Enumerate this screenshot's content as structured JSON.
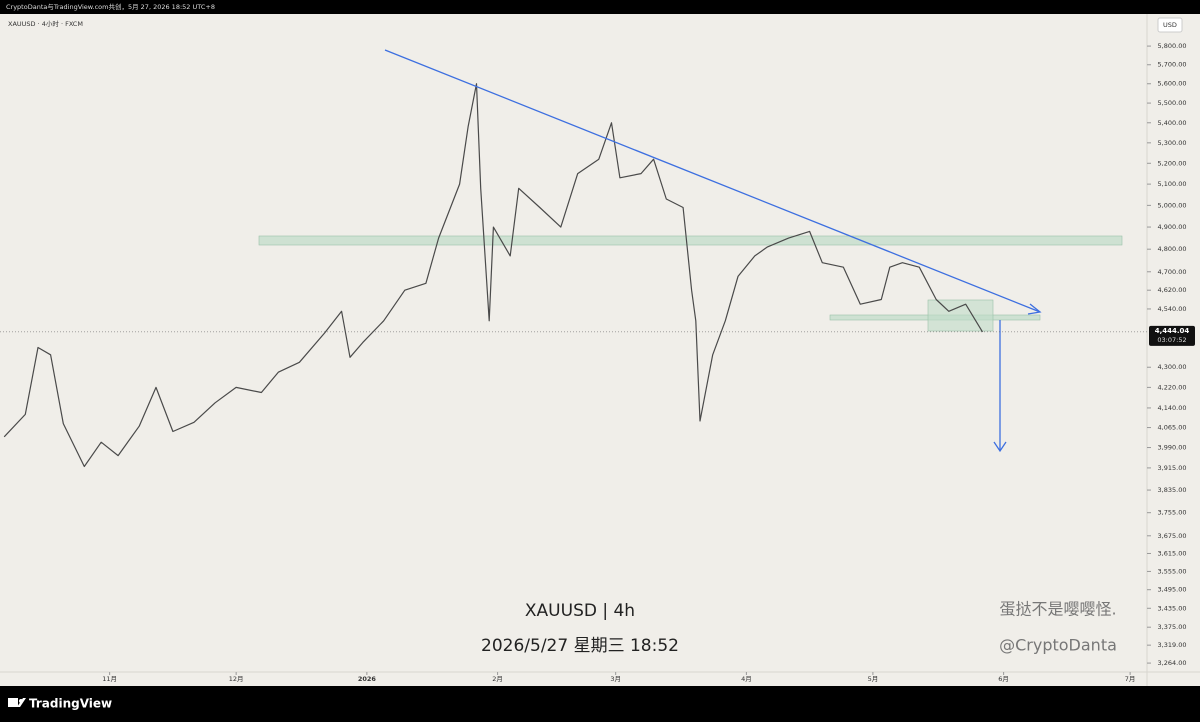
{
  "header": {
    "caption": "CryptoDanta与TradingView.com共创，5月 27, 2026 18:52 UTC+8",
    "symbol": "XAUUSD · 4小时 · FXCM",
    "currency": "USD"
  },
  "chart_data": {
    "type": "line",
    "color": "#4a4a4a",
    "log_scale": true,
    "x": [
      "2025-10-07",
      "2025-10-12",
      "2025-10-15",
      "2025-10-18",
      "2025-10-21",
      "2025-10-26",
      "2025-10-30",
      "2025-11-03",
      "2025-11-08",
      "2025-11-12",
      "2025-11-16",
      "2025-11-21",
      "2025-11-26",
      "2025-12-01",
      "2025-12-07",
      "2025-12-11",
      "2025-12-16",
      "2025-12-22",
      "2025-12-26",
      "2025-12-28",
      "2025-12-31",
      "2026-01-05",
      "2026-01-10",
      "2026-01-15",
      "2026-01-18",
      "2026-01-23",
      "2026-01-25",
      "2026-01-27",
      "2026-01-28",
      "2026-01-30",
      "2026-01-31",
      "2026-02-04",
      "2026-02-06",
      "2026-02-11",
      "2026-02-16",
      "2026-02-20",
      "2026-02-25",
      "2026-02-28",
      "2026-03-02",
      "2026-03-07",
      "2026-03-10",
      "2026-03-13",
      "2026-03-17",
      "2026-03-19",
      "2026-03-20",
      "2026-03-21",
      "2026-03-24",
      "2026-03-27",
      "2026-03-30",
      "2026-04-03",
      "2026-04-06",
      "2026-04-11",
      "2026-04-16",
      "2026-04-19",
      "2026-04-24",
      "2026-04-28",
      "2026-05-03",
      "2026-05-05",
      "2026-05-08",
      "2026-05-12",
      "2026-05-16",
      "2026-05-19",
      "2026-05-23",
      "2026-05-27"
    ],
    "values": [
      4030,
      4115,
      4380,
      4350,
      4080,
      3920,
      4010,
      3960,
      4070,
      4220,
      4050,
      4085,
      4160,
      4220,
      4200,
      4280,
      4320,
      4440,
      4530,
      4340,
      4400,
      4490,
      4620,
      4650,
      4850,
      5100,
      5380,
      5600,
      5080,
      4490,
      4900,
      4770,
      5080,
      4990,
      4900,
      5150,
      5220,
      5400,
      5130,
      5150,
      5220,
      5030,
      4990,
      4620,
      4490,
      4090,
      4350,
      4490,
      4680,
      4770,
      4810,
      4850,
      4880,
      4740,
      4720,
      4560,
      4580,
      4720,
      4740,
      4720,
      4580,
      4530,
      4560,
      4444.04
    ],
    "xlim": [
      "2025-10-06",
      "2026-07-05"
    ],
    "xticks": [
      {
        "value": "2025-11-01",
        "label": "11月"
      },
      {
        "value": "2025-12-01",
        "label": "12月"
      },
      {
        "value": "2026-01-01",
        "label": "2026"
      },
      {
        "value": "2026-02-01",
        "label": "2月"
      },
      {
        "value": "2026-03-01",
        "label": "3月"
      },
      {
        "value": "2026-04-01",
        "label": "4月"
      },
      {
        "value": "2026-05-01",
        "label": "5月"
      },
      {
        "value": "2026-06-01",
        "label": "6月"
      },
      {
        "value": "2026-07-01",
        "label": "7月"
      }
    ],
    "ylim": [
      3237,
      5976
    ],
    "yticks": [
      {
        "value": 5800,
        "label": "5,800.00"
      },
      {
        "value": 5700,
        "label": "5,700.00"
      },
      {
        "value": 5600,
        "label": "5,600.00"
      },
      {
        "value": 5500,
        "label": "5,500.00"
      },
      {
        "value": 5400,
        "label": "5,400.00"
      },
      {
        "value": 5300,
        "label": "5,300.00"
      },
      {
        "value": 5200,
        "label": "5,200.00"
      },
      {
        "value": 5100,
        "label": "5,100.00"
      },
      {
        "value": 5000,
        "label": "5,000.00"
      },
      {
        "value": 4900,
        "label": "4,900.00"
      },
      {
        "value": 4800,
        "label": "4,800.00"
      },
      {
        "value": 4700,
        "label": "4,700.00"
      },
      {
        "value": 4620,
        "label": "4,620.00"
      },
      {
        "value": 4540,
        "label": "4,540.00"
      },
      {
        "value": 4300,
        "label": "4,300.00"
      },
      {
        "value": 4220,
        "label": "4,220.00"
      },
      {
        "value": 4140,
        "label": "4,140.00"
      },
      {
        "value": 4065,
        "label": "4,065.00"
      },
      {
        "value": 3990,
        "label": "3,990.00"
      },
      {
        "value": 3915,
        "label": "3,915.00"
      },
      {
        "value": 3835,
        "label": "3,835.00"
      },
      {
        "value": 3755,
        "label": "3,755.00"
      },
      {
        "value": 3675,
        "label": "3,675.00"
      },
      {
        "value": 3615,
        "label": "3,615.00"
      },
      {
        "value": 3555,
        "label": "3,555.00"
      },
      {
        "value": 3495,
        "label": "3,495.00"
      },
      {
        "value": 3435,
        "label": "3,435.00"
      },
      {
        "value": 3375,
        "label": "3,375.00"
      },
      {
        "value": 3319,
        "label": "3,319.00"
      },
      {
        "value": 3264,
        "label": "3,264.00"
      }
    ],
    "current_price": {
      "value": 4444.04,
      "label": "4,444.04"
    },
    "countdown": "03:07:52"
  },
  "watermark": {
    "line1": "XAUUSD | 4h",
    "line2": "2026/5/27 星期三 18:52",
    "author": "蛋挞不是嘤嘤怪.",
    "handle": "@CryptoDanta"
  },
  "footer": {
    "brand": "TradingView"
  }
}
